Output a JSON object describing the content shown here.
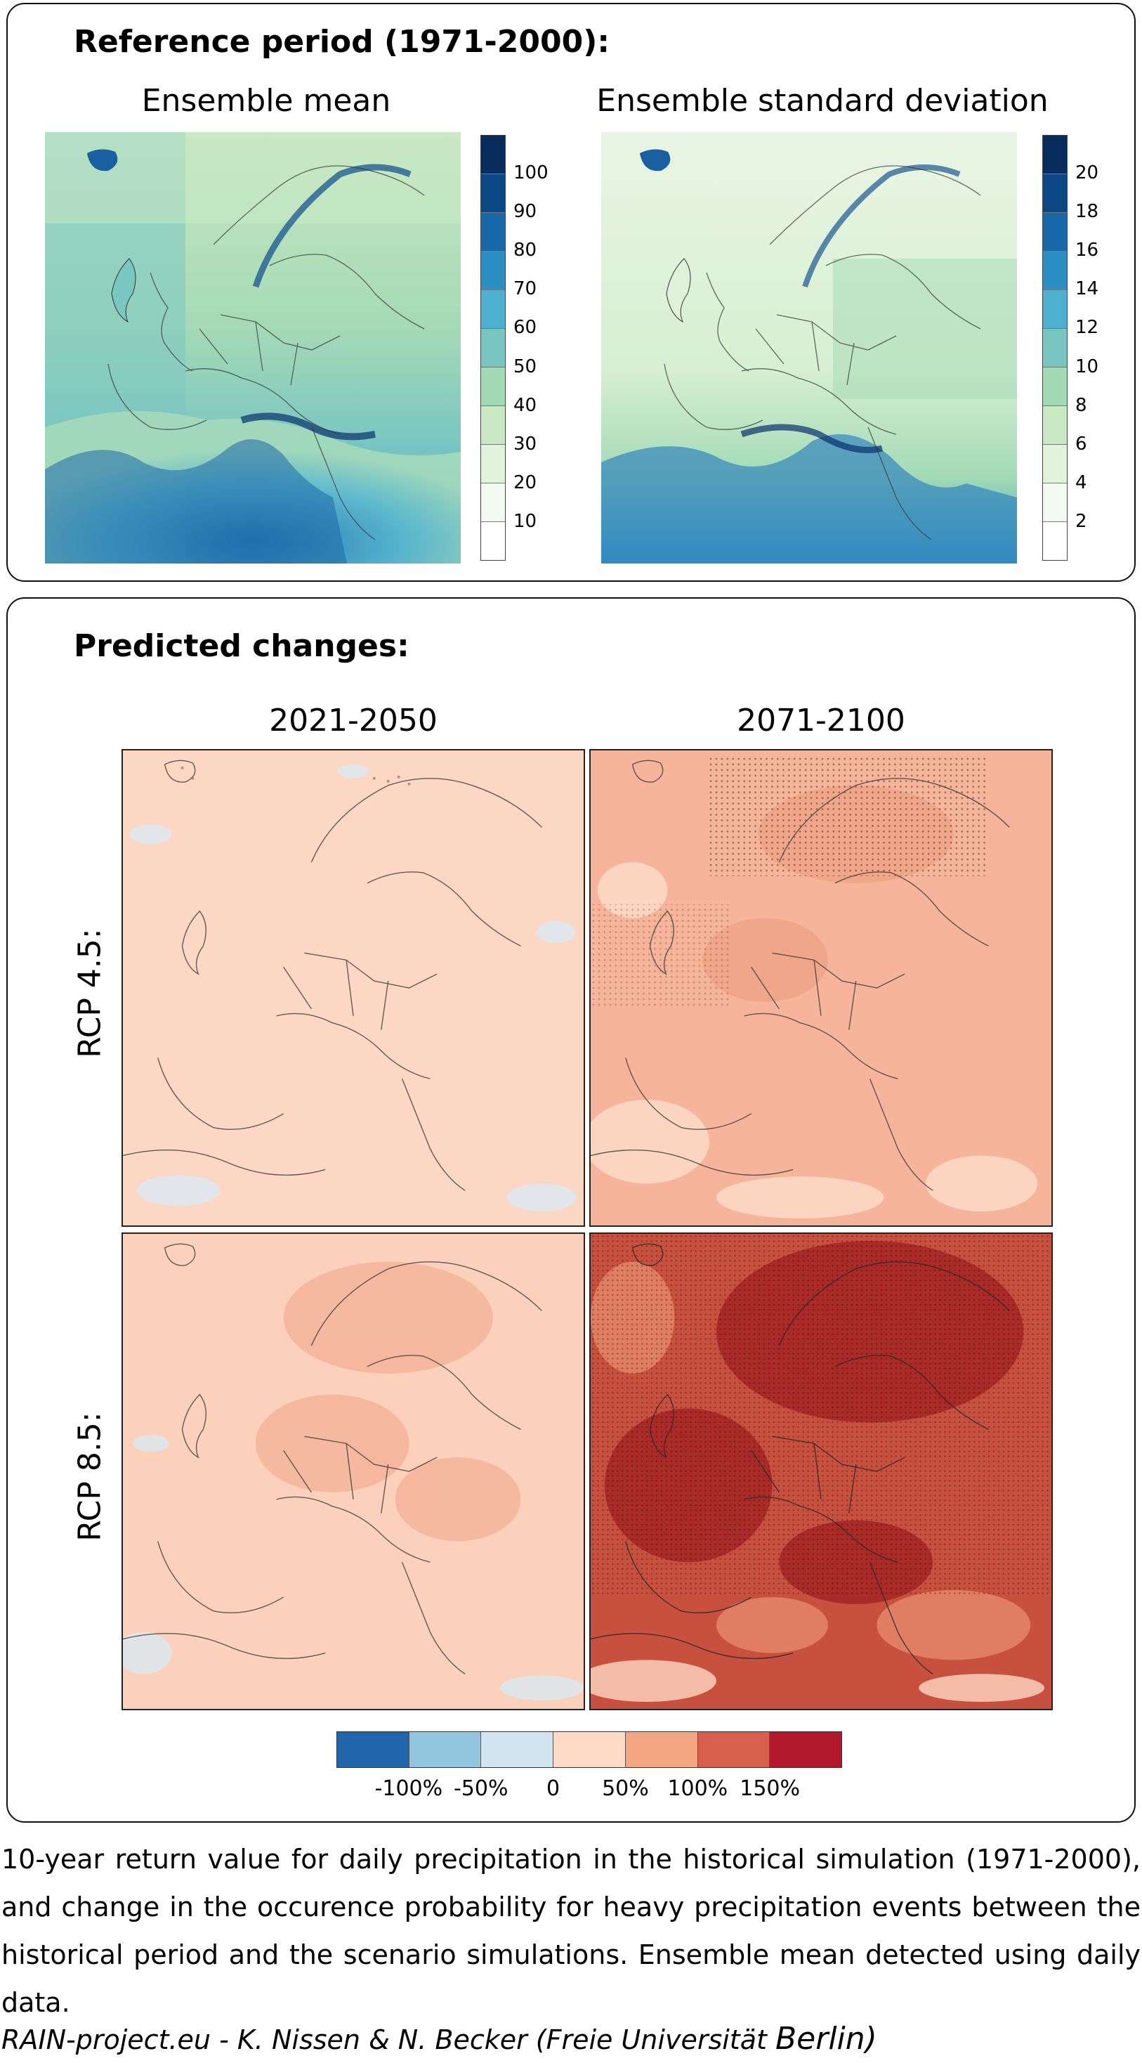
{
  "reference": {
    "heading": "Reference period (1971-2000):",
    "mean_title": "Ensemble mean",
    "std_title": "Ensemble standard deviation",
    "mean_colorbar": {
      "colors": [
        "#ffffff",
        "#f3faf1",
        "#e2f3dc",
        "#c9e9c4",
        "#a3dab6",
        "#79c6c1",
        "#4eb0d1",
        "#2c8fc3",
        "#1769aa",
        "#0c4786",
        "#082d5c"
      ],
      "ticks": [
        "100",
        "90",
        "80",
        "70",
        "60",
        "50",
        "40",
        "30",
        "20",
        "10"
      ]
    },
    "std_colorbar": {
      "colors": [
        "#ffffff",
        "#f3faf1",
        "#e2f3dc",
        "#c9e9c4",
        "#a3dab6",
        "#79c6c1",
        "#4eb0d1",
        "#2c8fc3",
        "#1769aa",
        "#0c4786",
        "#082d5c"
      ],
      "ticks": [
        "20",
        "18",
        "16",
        "14",
        "12",
        "10",
        "8",
        "6",
        "4",
        "2"
      ]
    }
  },
  "changes": {
    "heading": "Predicted changes:",
    "col_labels": [
      "2021-2050",
      "2071-2100"
    ],
    "row_labels": [
      "RCP 4.5:",
      "RCP 8.5:"
    ],
    "colorbar": {
      "colors": [
        "#2166ac",
        "#92c5de",
        "#d1e5f0",
        "#fddbc7",
        "#f4a582",
        "#d6604d",
        "#b2182b"
      ],
      "ticks": [
        "-100%",
        "-50%",
        "0",
        "50%",
        "100%",
        "150%"
      ]
    }
  },
  "caption": "10-year return value for daily precipitation in the historical simulation (1971-2000), and change in the occurence probability for heavy precipitation events between the historical period and the scenario simulations. Ensemble mean detected using daily data.",
  "credit": {
    "main": "RAIN-project.eu - K. Nissen & N. Becker (Freie Universität ",
    "city": "Berlin)"
  }
}
